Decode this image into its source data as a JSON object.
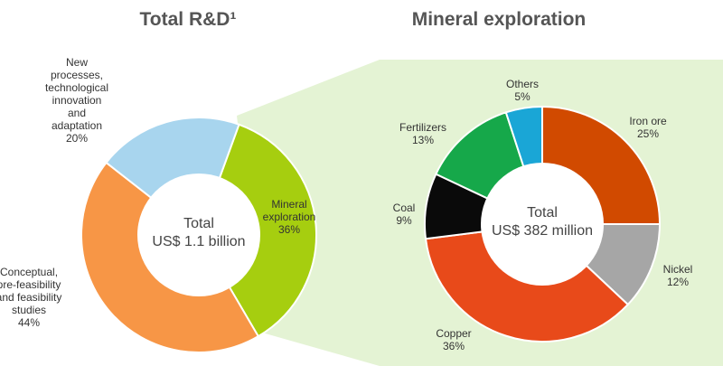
{
  "chart_data": [
    {
      "type": "pie",
      "title": "Total R&D¹",
      "center_label": [
        "Total",
        "US$ 1.1 billion"
      ],
      "slices": [
        {
          "label": [
            "Mineral",
            "exploration"
          ],
          "value": 36,
          "value_label": "36%",
          "color": "#a6ce0f"
        },
        {
          "label": [
            "Conceptual,",
            "pre-feasibility",
            "and feasibility",
            "studies"
          ],
          "value": 44,
          "value_label": "44%",
          "color": "#f79646"
        },
        {
          "label": [
            "New",
            "processes,",
            "technological",
            "innovation",
            "and",
            "adaptation"
          ],
          "value": 20,
          "value_label": "20%",
          "color": "#a8d5ee"
        }
      ]
    },
    {
      "type": "pie",
      "title": "Mineral exploration",
      "center_label": [
        "Total",
        "US$ 382 million"
      ],
      "slices": [
        {
          "label": [
            "Iron ore"
          ],
          "value": 25,
          "value_label": "25%",
          "color": "#d14a00"
        },
        {
          "label": [
            "Nickel"
          ],
          "value": 12,
          "value_label": "12%",
          "color": "#a6a6a6"
        },
        {
          "label": [
            "Copper"
          ],
          "value": 36,
          "value_label": "36%",
          "color": "#e84a1a"
        },
        {
          "label": [
            "Coal"
          ],
          "value": 9,
          "value_label": "9%",
          "color": "#0a0a0a"
        },
        {
          "label": [
            "Fertilizers"
          ],
          "value": 13,
          "value_label": "13%",
          "color": "#16a84a"
        },
        {
          "label": [
            "Others"
          ],
          "value": 5,
          "value_label": "5%",
          "color": "#1aa6d6"
        }
      ]
    }
  ],
  "connector_color": "#e4f3d4"
}
